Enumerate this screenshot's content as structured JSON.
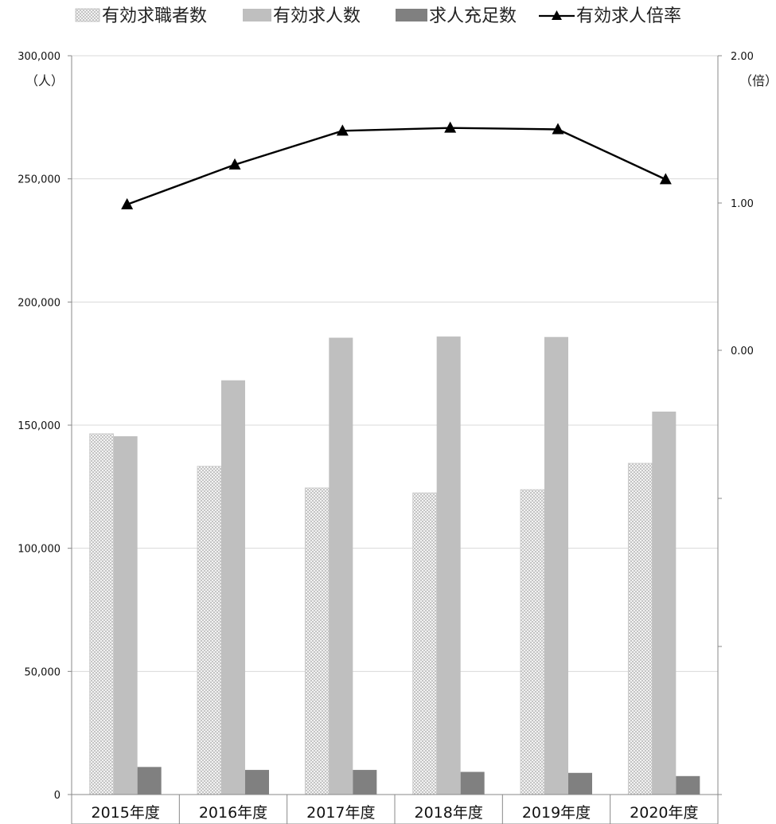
{
  "chart_data": {
    "type": "bar",
    "categories": [
      "2015年度",
      "2016年度",
      "2017年度",
      "2018年度",
      "2019年度",
      "2020年度"
    ],
    "series": [
      {
        "name": "有効求職者数",
        "axis": "left",
        "type": "bar",
        "pattern": "checker",
        "color": "#dcdcdc",
        "values": [
          146500,
          133300,
          124500,
          122500,
          123800,
          134500
        ]
      },
      {
        "name": "有効求人数",
        "axis": "left",
        "type": "bar",
        "color": "#bfbfbf",
        "values": [
          145500,
          168200,
          185500,
          186000,
          185800,
          155500
        ]
      },
      {
        "name": "求人充足数",
        "axis": "left",
        "type": "bar",
        "color": "#808080",
        "values": [
          11200,
          10000,
          10000,
          9200,
          8800,
          7500
        ]
      },
      {
        "name": "有効求人倍率",
        "axis": "right",
        "type": "line",
        "marker": "triangle",
        "color": "#000000",
        "values": [
          0.99,
          1.26,
          1.49,
          1.51,
          1.5,
          1.16
        ]
      }
    ],
    "y_left": {
      "unit": "（人）",
      "ylim": [
        0,
        300000
      ],
      "ticks": [
        0,
        50000,
        100000,
        150000,
        200000,
        250000,
        300000
      ],
      "tick_labels": [
        "0",
        "50,000",
        "100,000",
        "150,000",
        "200,000",
        "250,000",
        "300,000"
      ]
    },
    "y_right": {
      "unit": "（倍）",
      "tick_labels": [
        "2.00",
        "1.00",
        "0.00"
      ]
    },
    "grid": true,
    "legend_position": "top"
  }
}
